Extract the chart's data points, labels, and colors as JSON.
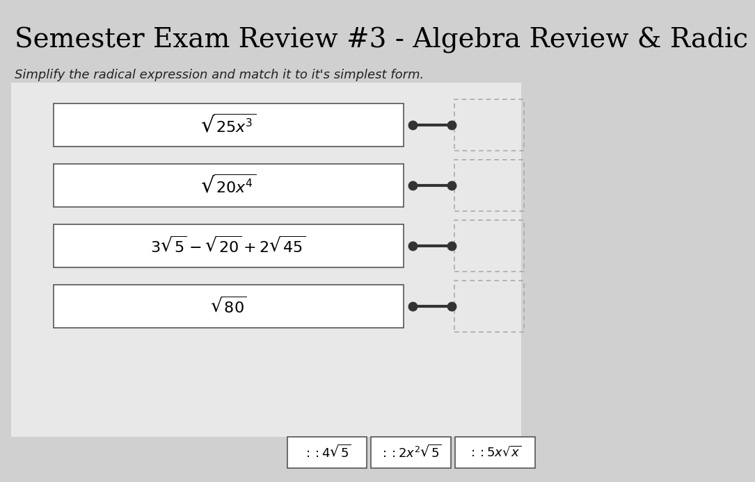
{
  "title": "Semester Exam Review #3 - Algebra Review & Radic",
  "subtitle": "Simplify the radical expression and match it to it's simplest form.",
  "bg_color": "#d0d0d0",
  "inner_bg_color": "#e8e8e8",
  "box_color": "#ffffff",
  "box_border_color": "#555555",
  "title_fontsize": 28,
  "subtitle_fontsize": 13,
  "expressions": [
    "$\\sqrt{25x^3}$",
    "$\\sqrt{20x^4}$",
    "$3\\sqrt{5} - \\sqrt{20} + 2\\sqrt{45}$",
    "$\\sqrt{80}$"
  ],
  "answers": [
    "$:: 4\\sqrt{5}$",
    "$:: 2x^2\\sqrt{5}$",
    "$:: 5x\\sqrt{x}$"
  ],
  "dot_color": "#333333",
  "line_color": "#333333",
  "dashed_box_color": "#aaaaaa"
}
